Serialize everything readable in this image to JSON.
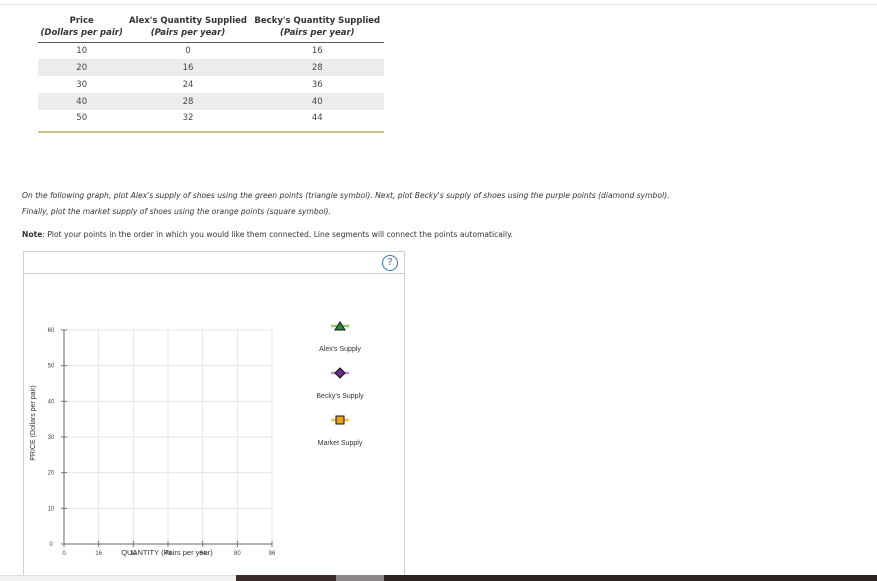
{
  "table": {
    "headers": [
      {
        "title": "Price",
        "subtitle": "(Dollars per pair)"
      },
      {
        "title": "Alex's Quantity Supplied",
        "subtitle": "(Pairs per year)"
      },
      {
        "title": "Becky's Quantity Supplied",
        "subtitle": "(Pairs per year)"
      }
    ],
    "rows": [
      [
        "10",
        "0",
        "16"
      ],
      [
        "20",
        "16",
        "28"
      ],
      [
        "30",
        "24",
        "36"
      ],
      [
        "40",
        "28",
        "40"
      ],
      [
        "50",
        "32",
        "44"
      ]
    ]
  },
  "instructions": {
    "text": "On the following graph, plot Alex's supply of shoes using the green points (triangle symbol). Next, plot Becky's supply of shoes using the purple points (diamond symbol). Finally, plot the market supply of shoes using the orange points (square symbol).",
    "note_label": "Note",
    "note_text": ": Plot your points in the order in which you would like them connected. Line segments will connect the points automatically."
  },
  "graph": {
    "help_label": "?",
    "chart_data": {
      "type": "scatter",
      "xlabel": "QUANTITY (Pairs per year)",
      "ylabel": "PRICE (Dollars per pair)",
      "xlim": [
        0,
        96
      ],
      "ylim": [
        0,
        60
      ],
      "x_ticks": [
        "0",
        "16",
        "32",
        "48",
        "64",
        "80",
        "96"
      ],
      "y_ticks": [
        "0",
        "10",
        "20",
        "30",
        "40",
        "50",
        "60"
      ],
      "grid": true,
      "series": []
    },
    "legend": [
      {
        "label": "Alex's Supply",
        "symbol": "triangle",
        "color": "#2a8a3a",
        "line_color": "#8fce6e"
      },
      {
        "label": "Becky's Supply",
        "symbol": "diamond",
        "color": "#6a2c91",
        "line_color": "#c48bd8"
      },
      {
        "label": "Market Supply",
        "symbol": "square",
        "color": "#e8a317",
        "line_color": "#f2c15a"
      }
    ]
  }
}
